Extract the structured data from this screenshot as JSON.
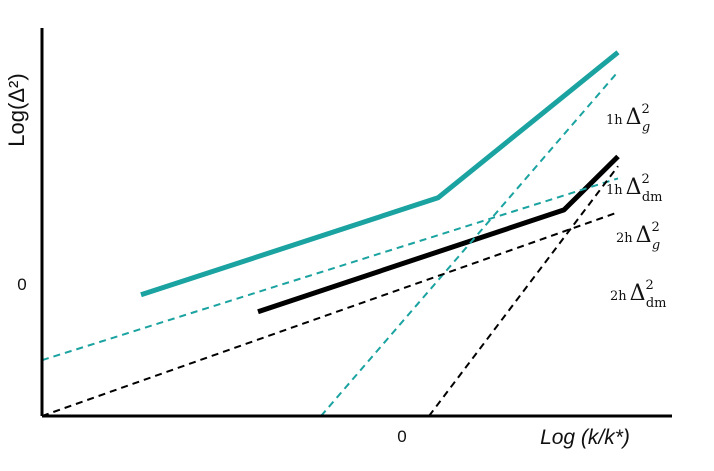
{
  "chart_data": {
    "type": "line",
    "title": "",
    "xlabel": "Log (k/k*)",
    "ylabel": "Log(Δ²)",
    "xlim": [
      -2.0,
      1.5
    ],
    "ylim": [
      -0.5,
      1.1
    ],
    "x_ticks": [
      {
        "value": 0,
        "label": "0"
      }
    ],
    "y_ticks": [
      {
        "value": 0,
        "label": "0"
      }
    ],
    "grid": false,
    "legend": "none",
    "series": [
      {
        "key": "gas_total",
        "style": "solid",
        "color": "#1aa3a0",
        "points": [
          [
            -1.45,
            0.0
          ],
          [
            0.2,
            0.4
          ],
          [
            1.2,
            1.0
          ]
        ]
      },
      {
        "key": "dm_total",
        "style": "solid",
        "color": "#000000",
        "points": [
          [
            -0.8,
            -0.07
          ],
          [
            0.9,
            0.35
          ],
          [
            1.2,
            0.57
          ]
        ]
      },
      {
        "key": "gas_1h",
        "style": "dashed",
        "color": "#1aa3a0",
        "points": [
          [
            -0.45,
            -0.5
          ],
          [
            1.2,
            0.92
          ]
        ]
      },
      {
        "key": "gas_2h",
        "style": "dashed",
        "color": "#1aa3a0",
        "points": [
          [
            -2.0,
            -0.27
          ],
          [
            1.2,
            0.48
          ]
        ]
      },
      {
        "key": "dm_1h",
        "style": "dashed",
        "color": "#000000",
        "points": [
          [
            0.15,
            -0.5
          ],
          [
            1.2,
            0.53
          ]
        ]
      },
      {
        "key": "dm_2h",
        "style": "dashed",
        "color": "#000000",
        "points": [
          [
            -2.0,
            -0.5
          ],
          [
            1.2,
            0.34
          ]
        ]
      }
    ],
    "annotations": [
      {
        "key": "gas_1h",
        "prefix": "1h",
        "symbol": "Δ",
        "sup": "2",
        "sub": "g"
      },
      {
        "key": "dm_1h",
        "prefix": "1h",
        "symbol": "Δ",
        "sup": "2",
        "sub": "dm"
      },
      {
        "key": "gas_2h",
        "prefix": "2h",
        "symbol": "Δ",
        "sup": "2",
        "sub": "g"
      },
      {
        "key": "dm_2h",
        "prefix": "2h",
        "symbol": "Δ",
        "sup": "2",
        "sub": "dm"
      }
    ],
    "colors": {
      "gas": "#1aa3a0",
      "dark_matter": "#000000",
      "axes": "#000000"
    }
  }
}
